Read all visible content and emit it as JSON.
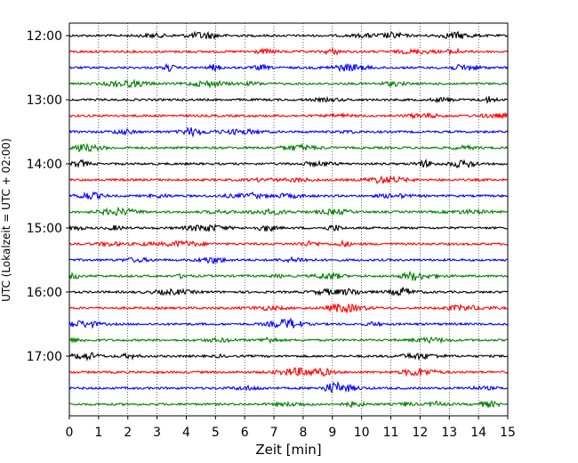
{
  "chart_data": {
    "type": "line",
    "title": "",
    "xlabel": "Zeit  [min]",
    "ylabel": "UTC (Lokalzeit = UTC + 02:00)",
    "xlim": [
      0,
      15
    ],
    "x_ticks": [
      "0",
      "1",
      "2",
      "3",
      "4",
      "5",
      "6",
      "7",
      "8",
      "9",
      "10",
      "11",
      "12",
      "13",
      "14",
      "15"
    ],
    "y_hour_labels": [
      "12:00",
      "13:00",
      "14:00",
      "15:00",
      "16:00",
      "17:00"
    ],
    "trace_rows": [
      "12:00",
      "12:15",
      "12:30",
      "12:45",
      "13:00",
      "13:15",
      "13:30",
      "13:45",
      "14:00",
      "14:15",
      "14:30",
      "14:45",
      "15:00",
      "15:15",
      "15:30",
      "15:45",
      "16:00",
      "16:15",
      "16:30",
      "16:45",
      "17:00",
      "17:15",
      "17:30",
      "17:45"
    ],
    "trace_colors": [
      "#000000",
      "#ff0000",
      "#0000ff",
      "#008000"
    ],
    "grid": "vertical-dotted",
    "legend": "none"
  }
}
